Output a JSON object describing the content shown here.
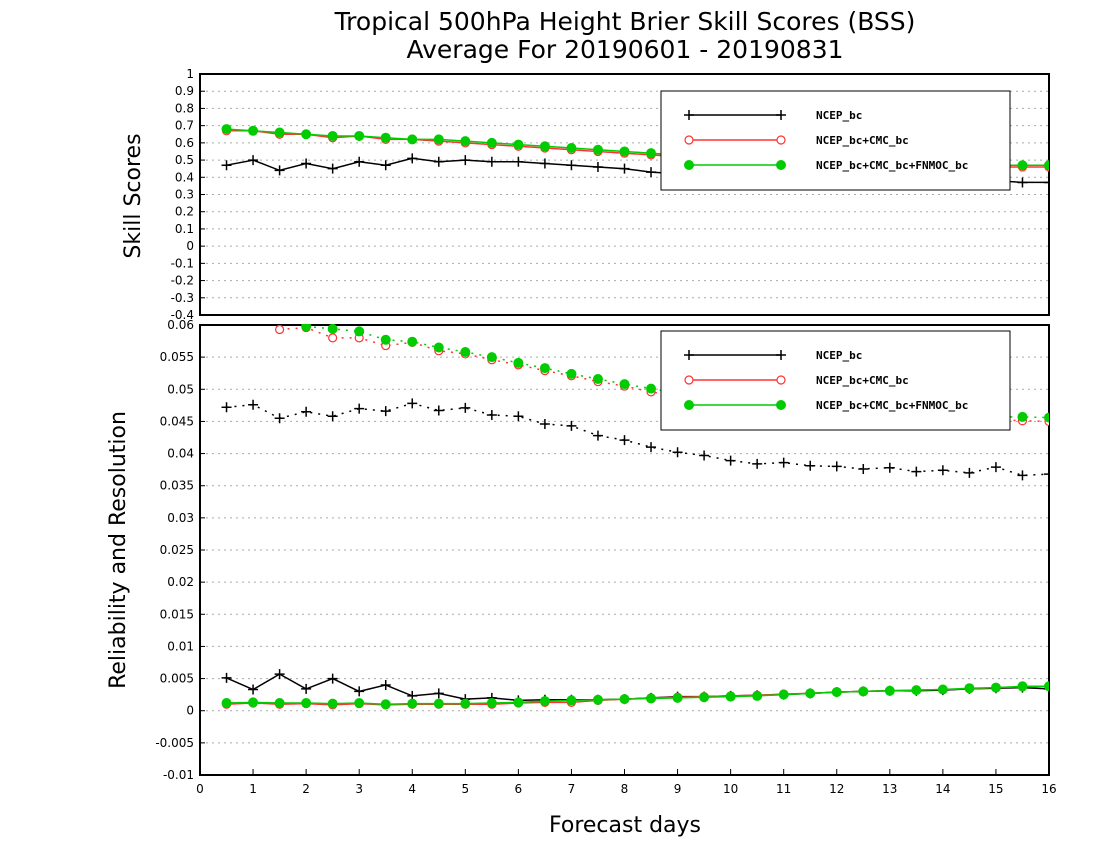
{
  "chart_data": [
    {
      "type": "line",
      "title": "Tropical 500hPa Height Brier Skill Scores (BSS)",
      "subtitle": "Average For 20190601 - 20190831",
      "xlabel": "",
      "ylabel": "Skill Scores",
      "xlim": [
        0,
        16
      ],
      "ylim": [
        -0.4,
        1
      ],
      "yticks": [
        "1",
        "0.9",
        "0.8",
        "0.7",
        "0.6",
        "0.5",
        "0.4",
        "0.3",
        "0.2",
        "0.1",
        "0",
        "-0.1",
        "-0.2",
        "-0.3",
        "-0.4"
      ],
      "grid": true,
      "legend_position": "top-right",
      "x": [
        0.5,
        1,
        1.5,
        2,
        2.5,
        3,
        3.5,
        4,
        4.5,
        5,
        5.5,
        6,
        6.5,
        7,
        7.5,
        8,
        8.5,
        9,
        9.5,
        10,
        10.5,
        11,
        11.5,
        12,
        12.5,
        13,
        13.5,
        14,
        14.5,
        15,
        15.5,
        16
      ],
      "series": [
        {
          "name": "NCEP_bc",
          "color": "#000000",
          "marker": "plus",
          "values": [
            0.47,
            0.5,
            0.44,
            0.48,
            0.45,
            0.49,
            0.47,
            0.51,
            0.49,
            0.5,
            0.49,
            0.49,
            0.48,
            0.47,
            0.46,
            0.45,
            0.43,
            0.42,
            0.42,
            0.41,
            0.41,
            0.4,
            0.4,
            0.4,
            0.39,
            0.39,
            0.39,
            0.38,
            0.38,
            0.38,
            0.37,
            0.37
          ]
        },
        {
          "name": "NCEP_bc+CMC_bc",
          "color": "#ff3333",
          "marker": "open-circle",
          "values": [
            0.67,
            0.67,
            0.65,
            0.65,
            0.63,
            0.64,
            0.62,
            0.62,
            0.61,
            0.6,
            0.59,
            0.58,
            0.57,
            0.56,
            0.55,
            0.54,
            0.53,
            0.52,
            0.51,
            0.5,
            0.5,
            0.49,
            0.49,
            0.48,
            0.48,
            0.47,
            0.47,
            0.47,
            0.46,
            0.46,
            0.46,
            0.46
          ]
        },
        {
          "name": "NCEP_bc+CMC_bc+FNMOC_bc",
          "color": "#00cc00",
          "marker": "filled-circle",
          "values": [
            0.68,
            0.67,
            0.66,
            0.65,
            0.64,
            0.64,
            0.63,
            0.62,
            0.62,
            0.61,
            0.6,
            0.59,
            0.58,
            0.57,
            0.56,
            0.55,
            0.54,
            0.53,
            0.52,
            0.51,
            0.51,
            0.5,
            0.5,
            0.49,
            0.49,
            0.48,
            0.48,
            0.47,
            0.47,
            0.47,
            0.47,
            0.47
          ]
        }
      ]
    },
    {
      "type": "line",
      "xlabel": "Forecast days",
      "ylabel": "Reliability and Resolution",
      "xlim": [
        0,
        16
      ],
      "ylim": [
        -0.01,
        0.06
      ],
      "xticks": [
        "0",
        "1",
        "2",
        "3",
        "4",
        "5",
        "6",
        "7",
        "8",
        "9",
        "10",
        "11",
        "12",
        "13",
        "14",
        "15",
        "16"
      ],
      "yticks": [
        "0.06",
        "0.055",
        "0.05",
        "0.045",
        "0.04",
        "0.035",
        "0.03",
        "0.025",
        "0.02",
        "0.015",
        "0.01",
        "0.005",
        "0",
        "-0.005",
        "-0.01"
      ],
      "grid": true,
      "legend_position": "top-right",
      "x": [
        0.5,
        1,
        1.5,
        2,
        2.5,
        3,
        3.5,
        4,
        4.5,
        5,
        5.5,
        6,
        6.5,
        7,
        7.5,
        8,
        8.5,
        9,
        9.5,
        10,
        10.5,
        11,
        11.5,
        12,
        12.5,
        13,
        13.5,
        14,
        14.5,
        15,
        15.5,
        16
      ],
      "series": [
        {
          "name": "NCEP_bc",
          "color": "#000000",
          "marker": "plus",
          "resolution": [
            0.0472,
            0.0476,
            0.0455,
            0.0465,
            0.0458,
            0.047,
            0.0466,
            0.0478,
            0.0467,
            0.0471,
            0.046,
            0.0458,
            0.0446,
            0.0443,
            0.0428,
            0.0421,
            0.041,
            0.0402,
            0.0397,
            0.0389,
            0.0384,
            0.0386,
            0.0381,
            0.038,
            0.0376,
            0.0378,
            0.0372,
            0.0374,
            0.037,
            0.0379,
            0.0366,
            0.0368
          ],
          "reliability": [
            0.0051,
            0.0033,
            0.0057,
            0.0034,
            0.005,
            0.003,
            0.004,
            0.0023,
            0.0027,
            0.0018,
            0.002,
            0.0016,
            0.0017,
            0.0017,
            0.0017,
            0.0018,
            0.002,
            0.0022,
            0.0022,
            0.0023,
            0.0024,
            0.0025,
            0.0027,
            0.0029,
            0.003,
            0.0031,
            0.0031,
            0.0032,
            0.0034,
            0.0035,
            0.0036,
            0.0034
          ]
        },
        {
          "name": "NCEP_bc+CMC_bc",
          "color": "#ff3333",
          "marker": "open-circle",
          "resolution": [
            null,
            null,
            0.0593,
            0.0596,
            0.058,
            0.058,
            0.0568,
            0.0573,
            0.056,
            0.0555,
            0.0546,
            0.0538,
            0.0529,
            0.0521,
            0.0512,
            0.0505,
            0.0496,
            0.049,
            0.0484,
            0.0478,
            0.0473,
            0.047,
            0.0467,
            0.0465,
            0.0462,
            0.046,
            0.0458,
            0.0456,
            0.0455,
            0.0453,
            0.0451,
            0.045
          ],
          "reliability": [
            0.001,
            0.0012,
            0.001,
            0.0011,
            0.0009,
            0.0011,
            0.0009,
            0.001,
            0.001,
            0.001,
            0.001,
            0.0012,
            0.0013,
            0.0013,
            0.0016,
            0.0018,
            0.002,
            0.0021,
            0.0022,
            0.0023,
            0.0024,
            0.0026,
            0.0027,
            0.0029,
            0.003,
            0.0031,
            0.0032,
            0.0033,
            0.0034,
            0.0036,
            0.0037,
            0.0038
          ]
        },
        {
          "name": "NCEP_bc+CMC_bc+FNMOC_bc",
          "color": "#00cc00",
          "marker": "filled-circle",
          "resolution": [
            null,
            null,
            null,
            0.0598,
            0.0594,
            0.059,
            0.0577,
            0.0574,
            0.0565,
            0.0558,
            0.055,
            0.0541,
            0.0533,
            0.0524,
            0.0516,
            0.0508,
            0.0501,
            0.0494,
            0.0488,
            0.0483,
            0.0478,
            0.0473,
            0.0469,
            0.0466,
            0.0464,
            0.0462,
            0.046,
            0.0459,
            0.0458,
            0.0457,
            0.0457,
            0.0456
          ],
          "reliability": [
            0.0012,
            0.0013,
            0.0012,
            0.0012,
            0.0011,
            0.0012,
            0.001,
            0.0011,
            0.0011,
            0.0011,
            0.0012,
            0.0013,
            0.0015,
            0.0016,
            0.0017,
            0.0018,
            0.0019,
            0.002,
            0.0021,
            0.0022,
            0.0023,
            0.0025,
            0.0027,
            0.0029,
            0.003,
            0.0031,
            0.0032,
            0.0033,
            0.0035,
            0.0036,
            0.0038,
            0.0038
          ]
        }
      ]
    }
  ]
}
